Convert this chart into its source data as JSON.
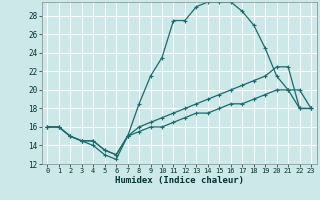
{
  "xlabel": "Humidex (Indice chaleur)",
  "bg_color": "#cce8e8",
  "grid_color": "#ffffff",
  "line_color": "#1a6b6b",
  "xlim": [
    -0.5,
    23.5
  ],
  "ylim": [
    12,
    29.5
  ],
  "xticks": [
    0,
    1,
    2,
    3,
    4,
    5,
    6,
    7,
    8,
    9,
    10,
    11,
    12,
    13,
    14,
    15,
    16,
    17,
    18,
    19,
    20,
    21,
    22,
    23
  ],
  "yticks": [
    12,
    14,
    16,
    18,
    20,
    22,
    24,
    26,
    28
  ],
  "line1_x": [
    0,
    1,
    2,
    3,
    4,
    5,
    6,
    7,
    8,
    9,
    10,
    11,
    12,
    13,
    14,
    15,
    16,
    17,
    18,
    19,
    20,
    21,
    22,
    23
  ],
  "line1_y": [
    16,
    16,
    15,
    14.5,
    14,
    13,
    12.5,
    15,
    18.5,
    21.5,
    23.5,
    27.5,
    27.5,
    29,
    29.5,
    29.5,
    29.5,
    28.5,
    27,
    24.5,
    21.5,
    20,
    20,
    18
  ],
  "line2_x": [
    0,
    1,
    2,
    3,
    4,
    5,
    6,
    7,
    8,
    9,
    10,
    11,
    12,
    13,
    14,
    15,
    16,
    17,
    18,
    19,
    20,
    21,
    22,
    23
  ],
  "line2_y": [
    16,
    16,
    15,
    14.5,
    14.5,
    13.5,
    13,
    15,
    16,
    16.5,
    17,
    17.5,
    18,
    18.5,
    19,
    19.5,
    20,
    20.5,
    21,
    21.5,
    22.5,
    22.5,
    18,
    18
  ],
  "line3_x": [
    0,
    1,
    2,
    3,
    4,
    5,
    6,
    7,
    8,
    9,
    10,
    11,
    12,
    13,
    14,
    15,
    16,
    17,
    18,
    19,
    20,
    21,
    22,
    23
  ],
  "line3_y": [
    16,
    16,
    15,
    14.5,
    14.5,
    13.5,
    13,
    15,
    15.5,
    16,
    16,
    16.5,
    17,
    17.5,
    17.5,
    18,
    18.5,
    18.5,
    19,
    19.5,
    20,
    20,
    18,
    18
  ]
}
